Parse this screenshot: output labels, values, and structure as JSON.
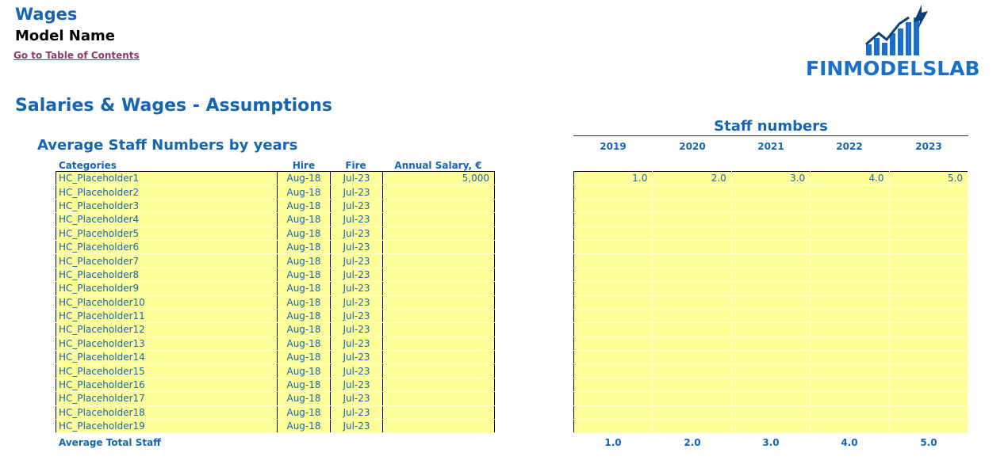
{
  "header": {
    "title": "Wages",
    "model_name": "Model Name",
    "toc_link": "Go to Table of Contents",
    "logo_text": "FINMODELSLAB"
  },
  "section_title": "Salaries & Wages - Assumptions",
  "left": {
    "title": "Average Staff Numbers by years",
    "columns": {
      "categories": "Categories",
      "hire": "Hire",
      "fire": "Fire",
      "salary": "Annual Salary, €"
    },
    "rows": [
      {
        "cat": "HC_Placeholder1",
        "hire": "Aug-18",
        "fire": "Jul-23",
        "salary": "5,000"
      },
      {
        "cat": "HC_Placeholder2",
        "hire": "Aug-18",
        "fire": "Jul-23",
        "salary": ""
      },
      {
        "cat": "HC_Placeholder3",
        "hire": "Aug-18",
        "fire": "Jul-23",
        "salary": ""
      },
      {
        "cat": "HC_Placeholder4",
        "hire": "Aug-18",
        "fire": "Jul-23",
        "salary": ""
      },
      {
        "cat": "HC_Placeholder5",
        "hire": "Aug-18",
        "fire": "Jul-23",
        "salary": ""
      },
      {
        "cat": "HC_Placeholder6",
        "hire": "Aug-18",
        "fire": "Jul-23",
        "salary": ""
      },
      {
        "cat": "HC_Placeholder7",
        "hire": "Aug-18",
        "fire": "Jul-23",
        "salary": ""
      },
      {
        "cat": "HC_Placeholder8",
        "hire": "Aug-18",
        "fire": "Jul-23",
        "salary": ""
      },
      {
        "cat": "HC_Placeholder9",
        "hire": "Aug-18",
        "fire": "Jul-23",
        "salary": ""
      },
      {
        "cat": "HC_Placeholder10",
        "hire": "Aug-18",
        "fire": "Jul-23",
        "salary": ""
      },
      {
        "cat": "HC_Placeholder11",
        "hire": "Aug-18",
        "fire": "Jul-23",
        "salary": ""
      },
      {
        "cat": "HC_Placeholder12",
        "hire": "Aug-18",
        "fire": "Jul-23",
        "salary": ""
      },
      {
        "cat": "HC_Placeholder13",
        "hire": "Aug-18",
        "fire": "Jul-23",
        "salary": ""
      },
      {
        "cat": "HC_Placeholder14",
        "hire": "Aug-18",
        "fire": "Jul-23",
        "salary": ""
      },
      {
        "cat": "HC_Placeholder15",
        "hire": "Aug-18",
        "fire": "Jul-23",
        "salary": ""
      },
      {
        "cat": "HC_Placeholder16",
        "hire": "Aug-18",
        "fire": "Jul-23",
        "salary": ""
      },
      {
        "cat": "HC_Placeholder17",
        "hire": "Aug-18",
        "fire": "Jul-23",
        "salary": ""
      },
      {
        "cat": "HC_Placeholder18",
        "hire": "Aug-18",
        "fire": "Jul-23",
        "salary": ""
      },
      {
        "cat": "HC_Placeholder19",
        "hire": "Aug-18",
        "fire": "Jul-23",
        "salary": ""
      }
    ],
    "total_label": "Average Total Staff"
  },
  "right": {
    "title": "Staff numbers",
    "years": [
      "2019",
      "2020",
      "2021",
      "2022",
      "2023"
    ],
    "first_row": [
      "1.0",
      "2.0",
      "3.0",
      "4.0",
      "5.0"
    ],
    "totals": [
      "1.0",
      "2.0",
      "3.0",
      "4.0",
      "5.0"
    ]
  },
  "colors": {
    "accent": "#1565b3",
    "input_fill": "#ffff99",
    "link": "#8e3b6b"
  }
}
